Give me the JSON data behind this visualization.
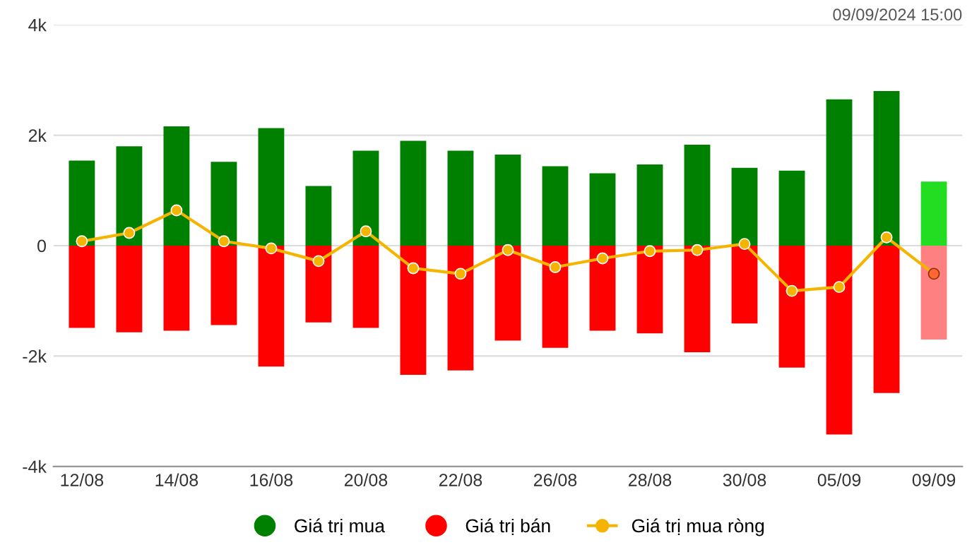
{
  "chart_data": {
    "type": "bar",
    "categories": [
      "12/08",
      null,
      "14/08",
      null,
      "16/08",
      null,
      "20/08",
      null,
      "22/08",
      null,
      "26/08",
      null,
      "28/08",
      null,
      "30/08",
      null,
      "05/09",
      null,
      "09/09"
    ],
    "series": [
      {
        "name": "Giá trị mua",
        "color": "#008000",
        "colors": [
          "#008000",
          "#008000",
          "#008000",
          "#008000",
          "#008000",
          "#008000",
          "#008000",
          "#008000",
          "#008000",
          "#008000",
          "#008000",
          "#008000",
          "#008000",
          "#008000",
          "#008000",
          "#008000",
          "#008000",
          "#008000",
          "#22dd22"
        ],
        "values": [
          1.54,
          1.8,
          2.16,
          1.52,
          2.13,
          1.08,
          1.72,
          1.9,
          1.72,
          1.65,
          1.44,
          1.31,
          1.47,
          1.83,
          1.41,
          1.36,
          2.65,
          2.8,
          1.16
        ]
      },
      {
        "name": "Giá trị bán",
        "color": "#ff0000",
        "colors": [
          "#ff0000",
          "#ff0000",
          "#ff0000",
          "#ff0000",
          "#ff0000",
          "#ff0000",
          "#ff0000",
          "#ff0000",
          "#ff0000",
          "#ff0000",
          "#ff0000",
          "#ff0000",
          "#ff0000",
          "#ff0000",
          "#ff0000",
          "#ff0000",
          "#ff0000",
          "#ff0000",
          "#ff8080"
        ],
        "values": [
          -1.49,
          -1.57,
          -1.54,
          -1.44,
          -2.19,
          -1.39,
          -1.49,
          -2.34,
          -2.26,
          -1.72,
          -1.85,
          -1.54,
          -1.59,
          -1.93,
          -1.41,
          -2.21,
          -3.42,
          -2.67,
          -1.7
        ]
      },
      {
        "name": "Giá trị mua ròng",
        "type": "line",
        "color": "#f5b400",
        "colors": [
          "#f5b400",
          "#f5b400",
          "#f5b400",
          "#f5b400",
          "#f5b400",
          "#f5b400",
          "#f5b400",
          "#f5b400",
          "#f5b400",
          "#f5b400",
          "#f5b400",
          "#f5b400",
          "#f5b400",
          "#f5b400",
          "#f5b400",
          "#f5b400",
          "#f5b400",
          "#f5b400",
          "#ff6633"
        ],
        "values": [
          0.08,
          0.23,
          0.64,
          0.08,
          -0.05,
          -0.28,
          0.26,
          -0.41,
          -0.51,
          -0.08,
          -0.39,
          -0.23,
          -0.1,
          -0.08,
          0.03,
          -0.82,
          -0.75,
          0.15,
          -0.51
        ]
      }
    ],
    "ylim": [
      -4,
      4
    ],
    "yticks": [
      {
        "value": -4,
        "label": "-4k"
      },
      {
        "value": -2,
        "label": "-2k"
      },
      0,
      {
        "value": 2,
        "label": "2k"
      },
      {
        "value": 4,
        "label": "4k"
      }
    ],
    "stacked": true,
    "grid": "y",
    "legend": "bottom",
    "marker": "circle",
    "line_style": "solid",
    "annotations": [
      "09/09/2024 15:00"
    ]
  }
}
